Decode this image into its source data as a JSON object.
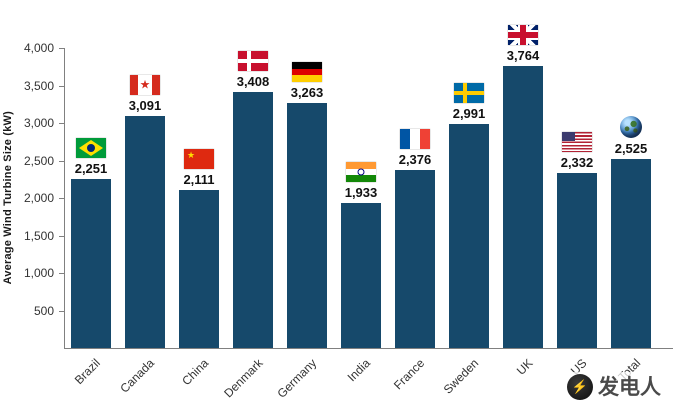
{
  "chart_data": {
    "type": "bar",
    "categories": [
      "Brazil",
      "Canada",
      "China",
      "Denmark",
      "Germany",
      "India",
      "France",
      "Sweden",
      "UK",
      "US",
      "Total"
    ],
    "values": [
      2251,
      3091,
      2111,
      3408,
      3263,
      1933,
      2376,
      2991,
      3764,
      2332,
      2525
    ],
    "value_labels": [
      "2,251",
      "3,091",
      "2,111",
      "3,408",
      "3,263",
      "1,933",
      "2,376",
      "2,991",
      "3,764",
      "2,332",
      "2,525"
    ],
    "flags": [
      "brazil",
      "canada",
      "china",
      "denmark",
      "germany",
      "india",
      "france",
      "sweden",
      "uk",
      "us",
      "globe"
    ],
    "flag_icons": [
      "brazil-flag-icon",
      "canada-flag-icon",
      "china-flag-icon",
      "denmark-flag-icon",
      "germany-flag-icon",
      "india-flag-icon",
      "france-flag-icon",
      "sweden-flag-icon",
      "uk-flag-icon",
      "us-flag-icon",
      "globe-icon"
    ],
    "title": "",
    "xlabel": "",
    "ylabel": "Average Wind Turbine Size (kW)",
    "ylim": [
      0,
      4000
    ],
    "yticks": [
      4000,
      3500,
      3000,
      2500,
      2000,
      1500,
      1000,
      500
    ],
    "ytick_labels": [
      "4,000",
      "3,500",
      "3,000",
      "2,500",
      "2,000",
      "1,500",
      "1,000",
      "500"
    ],
    "grid": false,
    "legend": false,
    "bar_color": "#16496b"
  },
  "watermark": {
    "text": "发电人",
    "logo_glyph": "⚡"
  }
}
